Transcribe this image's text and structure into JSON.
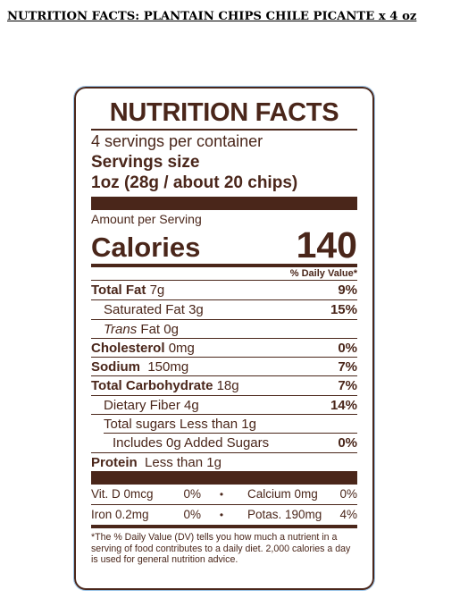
{
  "document": {
    "title": "NUTRITION FACTS: PLANTAIN CHIPS CHILE PICANTE x 4 oz"
  },
  "label": {
    "heading": "NUTRITION FACTS",
    "servings_per_container": "4 servings per container",
    "serving_size_label": "Servings size",
    "serving_size_value": "1oz (28g / about 20 chips)",
    "amount_per_serving": "Amount per Serving",
    "calories_label": "Calories",
    "calories_value": "140",
    "dv_header": "% Daily Value*",
    "nutrients": [
      {
        "name": "Total Fat",
        "amount": "7g",
        "dv": "9%"
      },
      {
        "name": "Saturated Fat",
        "amount": "3g",
        "dv": "15%"
      },
      {
        "name": "Trans",
        "suffix": "Fat 0g",
        "dv": ""
      },
      {
        "name": "Cholesterol",
        "amount": "0mg",
        "dv": "0%"
      },
      {
        "name": "Sodium",
        "amount": "150mg",
        "dv": "7%"
      },
      {
        "name": "Total Carbohydrate",
        "amount": "18g",
        "dv": "7%"
      },
      {
        "name": "Dietary Fiber",
        "amount": "4g",
        "dv": "14%"
      },
      {
        "name": "Total sugars Less than 1g",
        "amount": "",
        "dv": ""
      },
      {
        "name": "Includes 0g Added Sugars",
        "amount": "",
        "dv": "0%"
      },
      {
        "name": "Protein",
        "amount": "Less than 1g",
        "dv": ""
      }
    ],
    "minerals": [
      {
        "left_name": "Vit. D 0mcg",
        "left_dv": "0%",
        "right_name": "Calcium 0mg",
        "right_dv": "0%"
      },
      {
        "left_name": "Iron 0.2mg",
        "left_dv": "0%",
        "right_name": "Potas. 190mg",
        "right_dv": "4%"
      }
    ],
    "bullet": "•",
    "footnote": "*The % Daily Value (DV) tells you how much a nutrient in a serving of food contributes to a daily diet. 2,000 calories a day is used for general nutrition advice.",
    "colors": {
      "ink": "#4a261a",
      "frame_outline": "#9ac3e6"
    }
  }
}
